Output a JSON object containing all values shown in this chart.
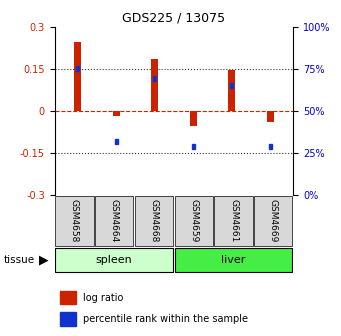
{
  "title": "GDS225 / 13075",
  "samples": [
    "GSM4658",
    "GSM4664",
    "GSM4668",
    "GSM4659",
    "GSM4661",
    "GSM4669"
  ],
  "log_ratios": [
    0.245,
    -0.02,
    0.185,
    -0.055,
    0.145,
    -0.04
  ],
  "percentile_ranks_pct": [
    75,
    32,
    69,
    29,
    65,
    29
  ],
  "tissue_groups": [
    {
      "name": "spleen",
      "indices": [
        0,
        1,
        2
      ],
      "color": "#ccffcc"
    },
    {
      "name": "liver",
      "indices": [
        3,
        4,
        5
      ],
      "color": "#44ee44"
    }
  ],
  "ylim": [
    -0.3,
    0.3
  ],
  "yticks_left": [
    -0.3,
    -0.15,
    0,
    0.15,
    0.3
  ],
  "yticks_right_labels": [
    "0%",
    "25%",
    "50%",
    "75%",
    "100%"
  ],
  "bar_color_red": "#cc2200",
  "bar_color_blue": "#1133cc",
  "hline_color": "#cc2200",
  "dotted_color": "#333333",
  "background_color": "#ffffff",
  "tick_label_color_left": "#cc2200",
  "tick_label_color_right": "#0000cc",
  "bar_width": 0.35
}
